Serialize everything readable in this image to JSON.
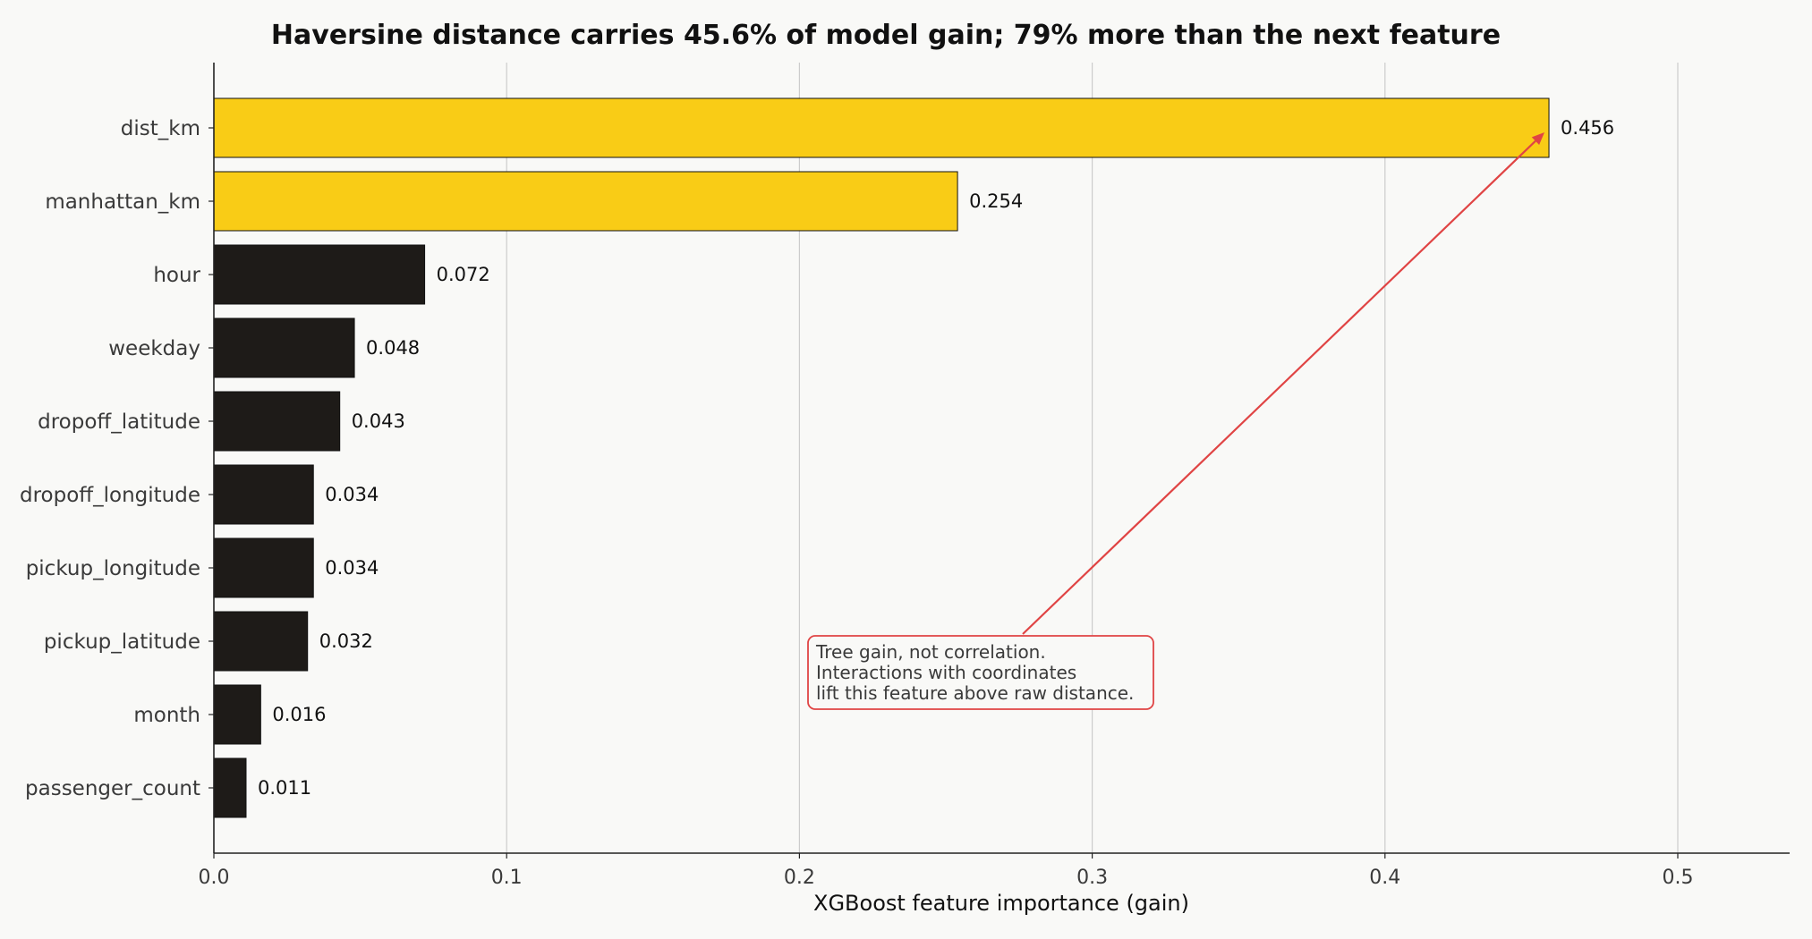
{
  "chart_data": {
    "type": "bar",
    "orientation": "horizontal",
    "title": "Haversine distance carries 45.6% of model gain; 79% more than the next feature",
    "xlabel": "XGBoost feature importance (gain)",
    "ylabel": "",
    "xlim": [
      0,
      0.538
    ],
    "xticks": [
      "0.0",
      "0.1",
      "0.2",
      "0.3",
      "0.4",
      "0.5"
    ],
    "grid": "vertical",
    "categories": [
      "dist_km",
      "manhattan_km",
      "hour",
      "weekday",
      "dropoff_latitude",
      "dropoff_longitude",
      "pickup_longitude",
      "pickup_latitude",
      "month",
      "passenger_count"
    ],
    "values": [
      0.456,
      0.254,
      0.072,
      0.048,
      0.043,
      0.034,
      0.034,
      0.032,
      0.016,
      0.011
    ],
    "value_labels": [
      "0.456",
      "0.254",
      "0.072",
      "0.048",
      "0.043",
      "0.034",
      "0.034",
      "0.032",
      "0.016",
      "0.011"
    ],
    "highlighted": [
      "dist_km",
      "manhattan_km"
    ],
    "colors": {
      "highlight": "#f9cc16",
      "default": "#1e1b18",
      "annotation": "#e04444",
      "grid": "#cccccc",
      "background": "#f9f9f7"
    },
    "annotation": {
      "lines": [
        "Tree gain, not correlation.",
        "Interactions with coordinates",
        "lift this feature above raw distance."
      ],
      "points_to": "dist_km"
    }
  }
}
